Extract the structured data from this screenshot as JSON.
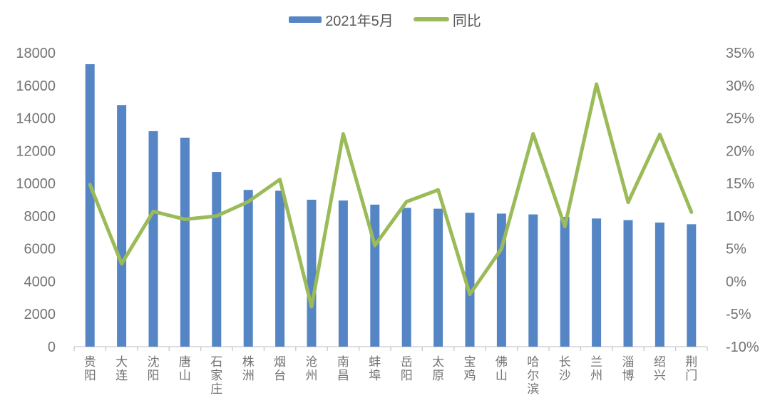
{
  "chart_data": {
    "type": "bar",
    "subtype": "bar+line-combo",
    "title": "",
    "categories": [
      "贵阳",
      "大连",
      "沈阳",
      "唐山",
      "石家庄",
      "株洲",
      "烟台",
      "沧州",
      "南昌",
      "蚌埠",
      "岳阳",
      "太原",
      "宝鸡",
      "佛山",
      "哈尔滨",
      "长沙",
      "兰州",
      "淄博",
      "绍兴",
      "荆门"
    ],
    "series": [
      {
        "name": "2021年5月",
        "type": "bar",
        "axis": "left",
        "color": "#5585C4",
        "values": [
          17300,
          14800,
          13200,
          12800,
          10700,
          9600,
          9550,
          9000,
          8950,
          8700,
          8500,
          8450,
          8200,
          8150,
          8100,
          7950,
          7850,
          7750,
          7600,
          7500
        ]
      },
      {
        "name": "同比",
        "type": "line",
        "axis": "right",
        "color": "#9BBB59",
        "values": [
          14.8,
          2.7,
          10.7,
          9.5,
          10.0,
          12.2,
          15.6,
          -3.9,
          22.6,
          5.5,
          12.2,
          14.0,
          -2.0,
          5.0,
          22.6,
          8.4,
          30.2,
          12.1,
          22.5,
          10.6
        ]
      }
    ],
    "left_axis": {
      "min": 0,
      "max": 18000,
      "step": 2000,
      "tick_labels": [
        "18000",
        "16000",
        "14000",
        "12000",
        "10000",
        "8000",
        "6000",
        "4000",
        "2000",
        "0"
      ]
    },
    "right_axis": {
      "min": -10,
      "max": 35,
      "step": 5,
      "tick_labels": [
        "35%",
        "30%",
        "25%",
        "20%",
        "15%",
        "10%",
        "5%",
        "0%",
        "-5%",
        "-10%"
      ]
    },
    "grid": false,
    "legend_position": "top-center",
    "colors": {
      "axis_text": "#737373",
      "legend_text": "#595959",
      "axis_line": "#C9C9C9",
      "background": "#FFFFFF"
    }
  }
}
